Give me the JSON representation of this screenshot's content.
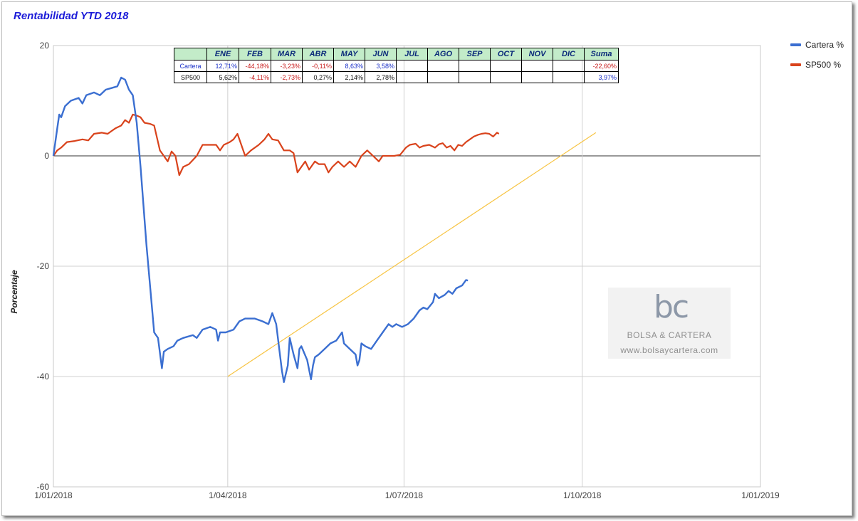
{
  "title": "Rentabilidad YTD 2018",
  "colors": {
    "cartera": "#3b6fd1",
    "sp500": "#d9431c",
    "trend": "#f7c443",
    "title": "#1b1bd8"
  },
  "legend": [
    {
      "name": "Cartera %",
      "color": "#3b6fd1"
    },
    {
      "name": "SP500 %",
      "color": "#d9431c"
    }
  ],
  "table": {
    "headers": [
      "ENE",
      "FEB",
      "MAR",
      "ABR",
      "MAY",
      "JUN",
      "JUL",
      "AGO",
      "SEP",
      "OCT",
      "NOV",
      "DIC",
      "Suma"
    ],
    "rows": [
      {
        "label": "Cartera",
        "values": [
          "12,71%",
          "-44,18%",
          "-3,23%",
          "-0,11%",
          "8,63%",
          "3,58%",
          "",
          "",
          "",
          "",
          "",
          "",
          "-22,60%"
        ]
      },
      {
        "label": "SP500",
        "values": [
          "5,62%",
          "-4,11%",
          "-2,73%",
          "0,27%",
          "2,14%",
          "2,78%",
          "",
          "",
          "",
          "",
          "",
          "",
          "3,97%"
        ]
      }
    ]
  },
  "watermark": {
    "logo": "bc",
    "name": "BOLSA & CARTERA",
    "url": "www.bolsaycartera.com"
  },
  "chart_data": {
    "type": "line",
    "ylabel": "Porcentaje",
    "xlabel": "",
    "ylim": [
      -60,
      20
    ],
    "xlim": [
      "2018-01-01",
      "2019-01-01"
    ],
    "y_ticks": [
      "20",
      "0",
      "-20",
      "-40",
      "-60"
    ],
    "x_ticks": [
      "1/01/2018",
      "1/04/2018",
      "1/07/2018",
      "1/10/2018",
      "1/01/2019"
    ],
    "x_tick_dates": [
      "2018-01-01",
      "2018-04-01",
      "2018-07-01",
      "2018-10-01",
      "2019-01-01"
    ],
    "grid": true,
    "legend_position": "top-right",
    "series": [
      {
        "name": "Cartera %",
        "points": [
          [
            "2018-01-01",
            0
          ],
          [
            "2018-01-03",
            5
          ],
          [
            "2018-01-04",
            7.5
          ],
          [
            "2018-01-05",
            7
          ],
          [
            "2018-01-07",
            9
          ],
          [
            "2018-01-10",
            10
          ],
          [
            "2018-01-14",
            10.5
          ],
          [
            "2018-01-16",
            9.5
          ],
          [
            "2018-01-18",
            11
          ],
          [
            "2018-01-22",
            11.5
          ],
          [
            "2018-01-25",
            11
          ],
          [
            "2018-01-28",
            12
          ],
          [
            "2018-01-31",
            12.3
          ],
          [
            "2018-02-03",
            12.6
          ],
          [
            "2018-02-05",
            14.2
          ],
          [
            "2018-02-07",
            13.8
          ],
          [
            "2018-02-09",
            12
          ],
          [
            "2018-02-11",
            11
          ],
          [
            "2018-02-13",
            6
          ],
          [
            "2018-02-15",
            -2
          ],
          [
            "2018-02-18",
            -16
          ],
          [
            "2018-02-22",
            -32
          ],
          [
            "2018-02-24",
            -33
          ],
          [
            "2018-02-26",
            -38.5
          ],
          [
            "2018-02-27",
            -35.5
          ],
          [
            "2018-03-01",
            -35
          ],
          [
            "2018-03-04",
            -34.5
          ],
          [
            "2018-03-06",
            -33.5
          ],
          [
            "2018-03-09",
            -33
          ],
          [
            "2018-03-14",
            -32.5
          ],
          [
            "2018-03-16",
            -33
          ],
          [
            "2018-03-19",
            -31.5
          ],
          [
            "2018-03-23",
            -31
          ],
          [
            "2018-03-26",
            -31.5
          ],
          [
            "2018-03-27",
            -33.5
          ],
          [
            "2018-03-28",
            -32
          ],
          [
            "2018-03-31",
            -32
          ],
          [
            "2018-04-04",
            -31.5
          ],
          [
            "2018-04-07",
            -30
          ],
          [
            "2018-04-10",
            -29.5
          ],
          [
            "2018-04-15",
            -29.5
          ],
          [
            "2018-04-19",
            -30
          ],
          [
            "2018-04-22",
            -30.5
          ],
          [
            "2018-04-24",
            -28.5
          ],
          [
            "2018-04-26",
            -30.5
          ],
          [
            "2018-04-29",
            -39
          ],
          [
            "2018-04-30",
            -41
          ],
          [
            "2018-05-02",
            -38
          ],
          [
            "2018-05-03",
            -33
          ],
          [
            "2018-05-05",
            -36
          ],
          [
            "2018-05-07",
            -38.5
          ],
          [
            "2018-05-08",
            -35
          ],
          [
            "2018-05-09",
            -34.5
          ],
          [
            "2018-05-12",
            -37
          ],
          [
            "2018-05-14",
            -40.5
          ],
          [
            "2018-05-15",
            -38
          ],
          [
            "2018-05-16",
            -36.5
          ],
          [
            "2018-05-18",
            -36
          ],
          [
            "2018-05-21",
            -35
          ],
          [
            "2018-05-24",
            -34
          ],
          [
            "2018-05-27",
            -33.5
          ],
          [
            "2018-05-30",
            -32
          ],
          [
            "2018-05-31",
            -34
          ],
          [
            "2018-06-03",
            -35
          ],
          [
            "2018-06-06",
            -36
          ],
          [
            "2018-06-07",
            -38
          ],
          [
            "2018-06-08",
            -37
          ],
          [
            "2018-06-09",
            -34
          ],
          [
            "2018-06-11",
            -34.5
          ],
          [
            "2018-06-14",
            -35
          ],
          [
            "2018-06-17",
            -33.5
          ],
          [
            "2018-06-20",
            -32
          ],
          [
            "2018-06-23",
            -30.5
          ],
          [
            "2018-06-25",
            -31
          ],
          [
            "2018-06-27",
            -30.5
          ],
          [
            "2018-06-30",
            -31
          ],
          [
            "2018-07-03",
            -30.5
          ],
          [
            "2018-07-06",
            -29.5
          ],
          [
            "2018-07-09",
            -28
          ],
          [
            "2018-07-11",
            -27.5
          ],
          [
            "2018-07-13",
            -27.8
          ],
          [
            "2018-07-16",
            -26.5
          ],
          [
            "2018-07-17",
            -25
          ],
          [
            "2018-07-19",
            -25.8
          ],
          [
            "2018-07-22",
            -25.2
          ],
          [
            "2018-07-24",
            -24.5
          ],
          [
            "2018-07-26",
            -25
          ],
          [
            "2018-07-28",
            -24
          ],
          [
            "2018-07-31",
            -23.5
          ],
          [
            "2018-08-02",
            -22.5
          ],
          [
            "2018-08-03",
            -22.6
          ]
        ]
      },
      {
        "name": "SP500 %",
        "points": [
          [
            "2018-01-01",
            0
          ],
          [
            "2018-01-03",
            1
          ],
          [
            "2018-01-05",
            1.5
          ],
          [
            "2018-01-08",
            2.5
          ],
          [
            "2018-01-12",
            2.7
          ],
          [
            "2018-01-16",
            3
          ],
          [
            "2018-01-19",
            2.8
          ],
          [
            "2018-01-22",
            4
          ],
          [
            "2018-01-26",
            4.2
          ],
          [
            "2018-01-29",
            4
          ],
          [
            "2018-01-31",
            4.5
          ],
          [
            "2018-02-02",
            5
          ],
          [
            "2018-02-05",
            5.5
          ],
          [
            "2018-02-07",
            6.5
          ],
          [
            "2018-02-09",
            6
          ],
          [
            "2018-02-11",
            7.5
          ],
          [
            "2018-02-13",
            7.3
          ],
          [
            "2018-02-15",
            7
          ],
          [
            "2018-02-17",
            6
          ],
          [
            "2018-02-20",
            5.8
          ],
          [
            "2018-02-22",
            5.5
          ],
          [
            "2018-02-25",
            1
          ],
          [
            "2018-02-27",
            0
          ],
          [
            "2018-03-01",
            -1
          ],
          [
            "2018-03-03",
            0.8
          ],
          [
            "2018-03-05",
            0
          ],
          [
            "2018-03-07",
            -3.5
          ],
          [
            "2018-03-09",
            -2
          ],
          [
            "2018-03-12",
            -1.5
          ],
          [
            "2018-03-16",
            0
          ],
          [
            "2018-03-19",
            2
          ],
          [
            "2018-03-23",
            2
          ],
          [
            "2018-03-26",
            2
          ],
          [
            "2018-03-28",
            1
          ],
          [
            "2018-03-30",
            2
          ],
          [
            "2018-04-02",
            2.5
          ],
          [
            "2018-04-04",
            3
          ],
          [
            "2018-04-06",
            4
          ],
          [
            "2018-04-08",
            2
          ],
          [
            "2018-04-10",
            0
          ],
          [
            "2018-04-13",
            1
          ],
          [
            "2018-04-17",
            2
          ],
          [
            "2018-04-20",
            3
          ],
          [
            "2018-04-22",
            4
          ],
          [
            "2018-04-24",
            3
          ],
          [
            "2018-04-27",
            2.8
          ],
          [
            "2018-04-30",
            1
          ],
          [
            "2018-05-03",
            1
          ],
          [
            "2018-05-05",
            0.5
          ],
          [
            "2018-05-07",
            -3
          ],
          [
            "2018-05-09",
            -2
          ],
          [
            "2018-05-11",
            -1
          ],
          [
            "2018-05-13",
            -2.5
          ],
          [
            "2018-05-16",
            -1
          ],
          [
            "2018-05-18",
            -1.5
          ],
          [
            "2018-05-21",
            -1.5
          ],
          [
            "2018-05-23",
            -3
          ],
          [
            "2018-05-25",
            -2
          ],
          [
            "2018-05-28",
            -1
          ],
          [
            "2018-05-31",
            -2
          ],
          [
            "2018-06-03",
            -1
          ],
          [
            "2018-06-06",
            -2
          ],
          [
            "2018-06-09",
            0
          ],
          [
            "2018-06-12",
            1
          ],
          [
            "2018-06-15",
            0
          ],
          [
            "2018-06-18",
            -1
          ],
          [
            "2018-06-20",
            0
          ],
          [
            "2018-06-23",
            0
          ],
          [
            "2018-06-26",
            0
          ],
          [
            "2018-06-29",
            0.2
          ],
          [
            "2018-07-02",
            1.5
          ],
          [
            "2018-07-04",
            2
          ],
          [
            "2018-07-07",
            2.2
          ],
          [
            "2018-07-09",
            1.5
          ],
          [
            "2018-07-11",
            1.8
          ],
          [
            "2018-07-14",
            2
          ],
          [
            "2018-07-17",
            1.5
          ],
          [
            "2018-07-19",
            2.1
          ],
          [
            "2018-07-21",
            2.3
          ],
          [
            "2018-07-23",
            1.5
          ],
          [
            "2018-07-25",
            1.8
          ],
          [
            "2018-07-27",
            1
          ],
          [
            "2018-07-29",
            2
          ],
          [
            "2018-07-31",
            1.8
          ],
          [
            "2018-08-02",
            2.5
          ],
          [
            "2018-08-04",
            3
          ],
          [
            "2018-08-06",
            3.5
          ],
          [
            "2018-08-08",
            3.8
          ],
          [
            "2018-08-10",
            4
          ],
          [
            "2018-08-12",
            4.1
          ],
          [
            "2018-08-14",
            4
          ],
          [
            "2018-08-16",
            3.5
          ],
          [
            "2018-08-18",
            4.2
          ],
          [
            "2018-08-19",
            4
          ]
        ]
      },
      {
        "name": "",
        "points": [
          [
            "2018-04-01",
            -40
          ],
          [
            "2018-10-08",
            4.2
          ]
        ]
      }
    ]
  }
}
